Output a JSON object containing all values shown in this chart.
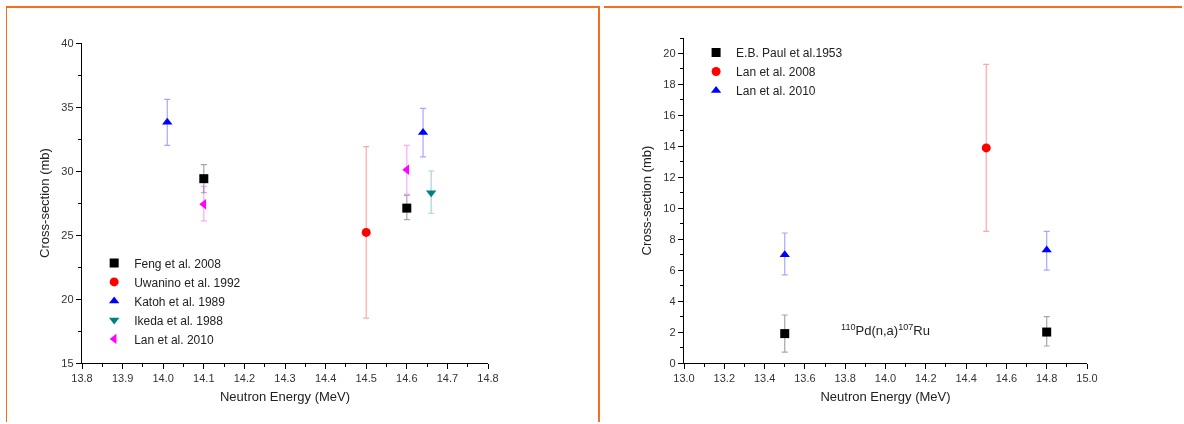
{
  "chart_data": [
    {
      "type": "scatter",
      "xlabel": "Neutron Energy (MeV)",
      "ylabel": "Cross-section (mb)",
      "xlim": [
        13.8,
        14.8
      ],
      "xticks": [
        13.8,
        13.9,
        {
          "value": 14,
          "label": "14.0"
        },
        14.1,
        14.2,
        14.3,
        14.4,
        14.5,
        14.6,
        14.7,
        14.8
      ],
      "ylim": [
        15,
        40
      ],
      "yticks": [
        15,
        20,
        25,
        30,
        35,
        40
      ],
      "grid": false,
      "legend": "bottom left",
      "series": [
        {
          "name": "Feng et al. 2008",
          "color": "#000000",
          "marker": "square",
          "x": [
            14.1,
            14.6
          ],
          "values": [
            29.4,
            27.1
          ],
          "errors": [
            [
              28.3,
              30.5
            ],
            [
              26.2,
              28.1
            ]
          ]
        },
        {
          "name": "Uwanino et al. 1992",
          "color": "#ff0000",
          "marker": "circle",
          "x": [
            14.5
          ],
          "values": [
            25.2
          ],
          "errors": [
            [
              18.5,
              31.9
            ]
          ]
        },
        {
          "name": "Katoh et al. 1989",
          "color": "#0000ff",
          "marker": "triangle",
          "x": [
            14.01,
            14.64
          ],
          "values": [
            33.8,
            33.0
          ],
          "errors": [
            [
              32.0,
              35.6
            ],
            [
              31.1,
              34.9
            ]
          ]
        },
        {
          "name": "Ikeda et al. 1988",
          "color": "#008080",
          "marker": "triangle-down",
          "x": [
            14.66
          ],
          "values": [
            28.3
          ],
          "errors": [
            [
              26.7,
              30.0
            ]
          ]
        },
        {
          "name": "Lan et al. 2010",
          "color": "#ff00ff",
          "marker": "triangle-left",
          "x": [
            14.1,
            14.6
          ],
          "values": [
            27.4,
            30.1
          ],
          "errors": [
            [
              26.1,
              28.8
            ],
            [
              28.2,
              32.0
            ]
          ]
        }
      ]
    },
    {
      "type": "scatter",
      "xlabel": "Neutron Energy (MeV)",
      "ylabel": "Cross-section (mb)",
      "xlim": [
        13.0,
        15.0
      ],
      "xticks": [
        {
          "value": 13,
          "label": "13.0"
        },
        13.2,
        13.4,
        13.6,
        13.8,
        {
          "value": 14,
          "label": "14.0"
        },
        14.2,
        14.4,
        14.6,
        14.8,
        {
          "value": 15,
          "label": "15.0"
        }
      ],
      "ylim": [
        0,
        21
      ],
      "yticks": [
        0,
        2,
        4,
        6,
        8,
        10,
        12,
        14,
        16,
        18,
        20
      ],
      "grid": false,
      "legend": "top left",
      "annotations": [
        "$^{110}$Pd(n,a)$^{107}$Ru"
      ],
      "series": [
        {
          "name": "E.B. Paul et al.1953",
          "color": "#000000",
          "marker": "square",
          "x": [
            13.5,
            14.8
          ],
          "values": [
            1.9,
            2.0
          ],
          "errors": [
            [
              0.7,
              3.1
            ],
            [
              1.1,
              3.0
            ]
          ]
        },
        {
          "name": "Lan et al. 2008",
          "color": "#ff0000",
          "marker": "circle",
          "x": [
            14.5
          ],
          "values": [
            13.9
          ],
          "errors": [
            [
              8.5,
              19.3
            ]
          ]
        },
        {
          "name": "Lan et al. 2010",
          "color": "#0000ff",
          "marker": "triangle",
          "x": [
            13.5,
            14.8
          ],
          "values": [
            7.0,
            7.3
          ],
          "errors": [
            [
              5.7,
              8.4
            ],
            [
              6.0,
              8.5
            ]
          ]
        }
      ]
    }
  ]
}
